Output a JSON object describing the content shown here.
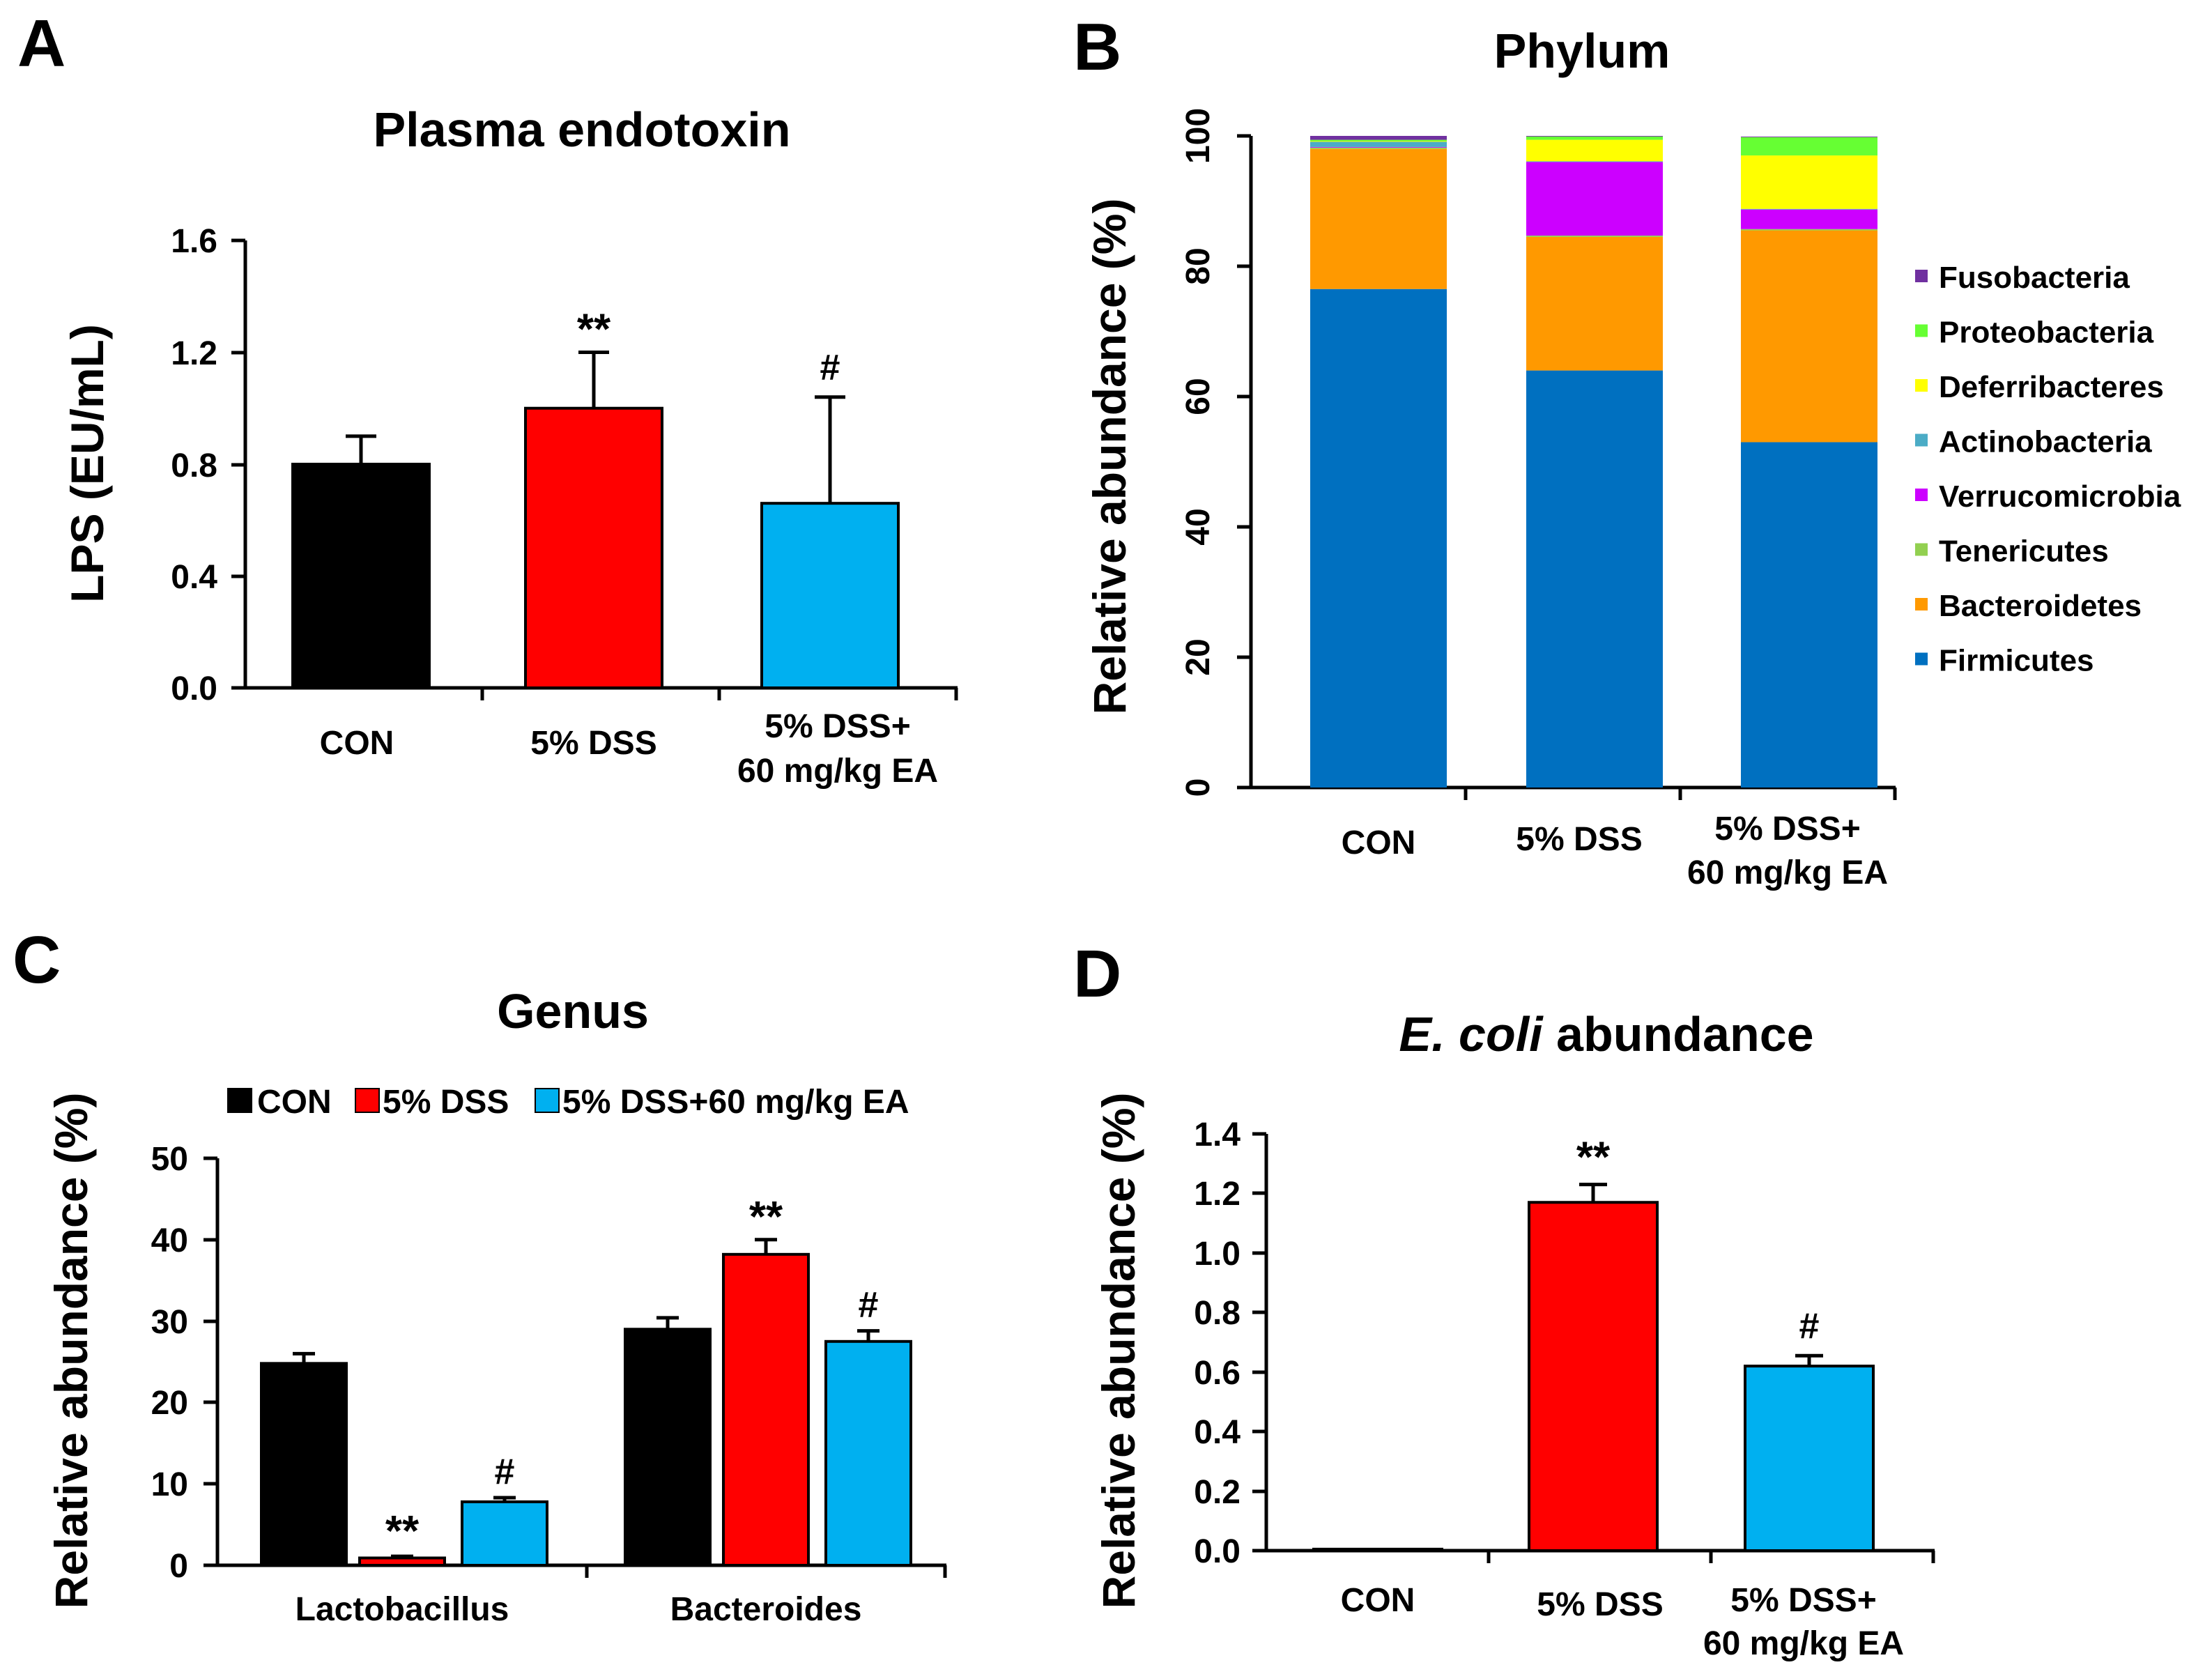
{
  "colors": {
    "con": "#000000",
    "dss": "#ff0000",
    "ea": "#00b0f0",
    "axis": "#000000"
  },
  "chart_data": [
    {
      "panel_label": "A",
      "type": "bar",
      "title": "Plasma endotoxin",
      "ylabel": "LPS (EU/mL)",
      "ylim": [
        0,
        1.6
      ],
      "yticks": [
        "0.0",
        "0.4",
        "0.8",
        "1.2",
        "1.6"
      ],
      "categories": [
        [
          "CON"
        ],
        [
          "5%  DSS"
        ],
        [
          "5%  DSS+",
          "60 mg/kg EA"
        ]
      ],
      "values": [
        0.8,
        1.0,
        0.66
      ],
      "errors": [
        0.1,
        0.2,
        0.38
      ],
      "annotations": [
        "",
        "**",
        "#"
      ]
    },
    {
      "panel_label": "B",
      "type": "bar",
      "stacked": true,
      "title": "Phylum",
      "ylabel": "Relative abundance  (%)",
      "ylim": [
        0,
        100
      ],
      "yticks": [
        "0",
        "20",
        "40",
        "60",
        "80",
        "100"
      ],
      "categories": [
        [
          "CON"
        ],
        [
          "5%  DSS"
        ],
        [
          "5%  DSS+",
          "60 mg/kg EA"
        ]
      ],
      "series": [
        {
          "name": "Firmicutes",
          "color": "#0070c0",
          "values": [
            76.5,
            64.0,
            53.0
          ]
        },
        {
          "name": "Bacteroidetes",
          "color": "#ff9900",
          "values": [
            21.5,
            20.5,
            32.5
          ]
        },
        {
          "name": "Tenericutes",
          "color": "#92d050",
          "values": [
            0.2,
            0.2,
            0.2
          ]
        },
        {
          "name": "Verrucomicrobia",
          "color": "#cc00ff",
          "values": [
            0.1,
            11.3,
            3.0
          ]
        },
        {
          "name": "Actinobacteria",
          "color": "#4bacc6",
          "values": [
            0.8,
            0.1,
            0.1
          ]
        },
        {
          "name": "Deferribacteres",
          "color": "#ffff00",
          "values": [
            0.1,
            3.3,
            8.2
          ]
        },
        {
          "name": "Proteobacteria",
          "color": "#66ff33",
          "values": [
            0.2,
            0.5,
            2.8
          ]
        },
        {
          "name": "Fusobacteria",
          "color": "#7030a0",
          "values": [
            0.6,
            0.1,
            0.1
          ]
        }
      ],
      "legend": [
        "Fusobacteria",
        "Proteobacteria",
        "Deferribacteres",
        "Actinobacteria",
        "Verrucomicrobia",
        "Tenericutes",
        "Bacteroidetes",
        "Firmicutes"
      ],
      "legend_position": "right"
    },
    {
      "panel_label": "C",
      "type": "bar",
      "title": "Genus",
      "ylabel": "Relative abundance  (%)",
      "ylim": [
        0,
        50
      ],
      "yticks": [
        "0",
        "10",
        "20",
        "30",
        "40",
        "50"
      ],
      "categories": [
        "Lactobacillus",
        "Bacteroides"
      ],
      "legend": [
        "CON",
        "5%  DSS",
        "5%  DSS+60 mg/kg EA"
      ],
      "legend_position": "top",
      "series": [
        {
          "name": "CON",
          "values": [
            24.8,
            29.0
          ],
          "errors": [
            1.2,
            1.4
          ],
          "annotations": [
            "",
            ""
          ]
        },
        {
          "name": "5%  DSS",
          "values": [
            0.9,
            38.2
          ],
          "errors": [
            0.2,
            1.8
          ],
          "annotations": [
            "**",
            "**"
          ]
        },
        {
          "name": "5%  DSS+60 mg/kg EA",
          "values": [
            7.8,
            27.5
          ],
          "errors": [
            0.5,
            1.3
          ],
          "annotations": [
            "#",
            "#"
          ]
        }
      ]
    },
    {
      "panel_label": "D",
      "type": "bar",
      "title_italic": "E. coli",
      "title_rest": " abundance",
      "ylabel": "Relative abundance  (%)",
      "ylim": [
        0,
        1.4
      ],
      "yticks": [
        "0.0",
        "0.2",
        "0.4",
        "0.6",
        "0.8",
        "1.0",
        "1.2",
        "1.4"
      ],
      "categories": [
        [
          "CON"
        ],
        [
          "5%  DSS"
        ],
        [
          "5%  DSS+",
          "60 mg/kg EA"
        ]
      ],
      "values": [
        0.005,
        1.17,
        0.62
      ],
      "errors": [
        0.0,
        0.06,
        0.035
      ],
      "annotations": [
        "",
        "**",
        "#"
      ]
    }
  ]
}
